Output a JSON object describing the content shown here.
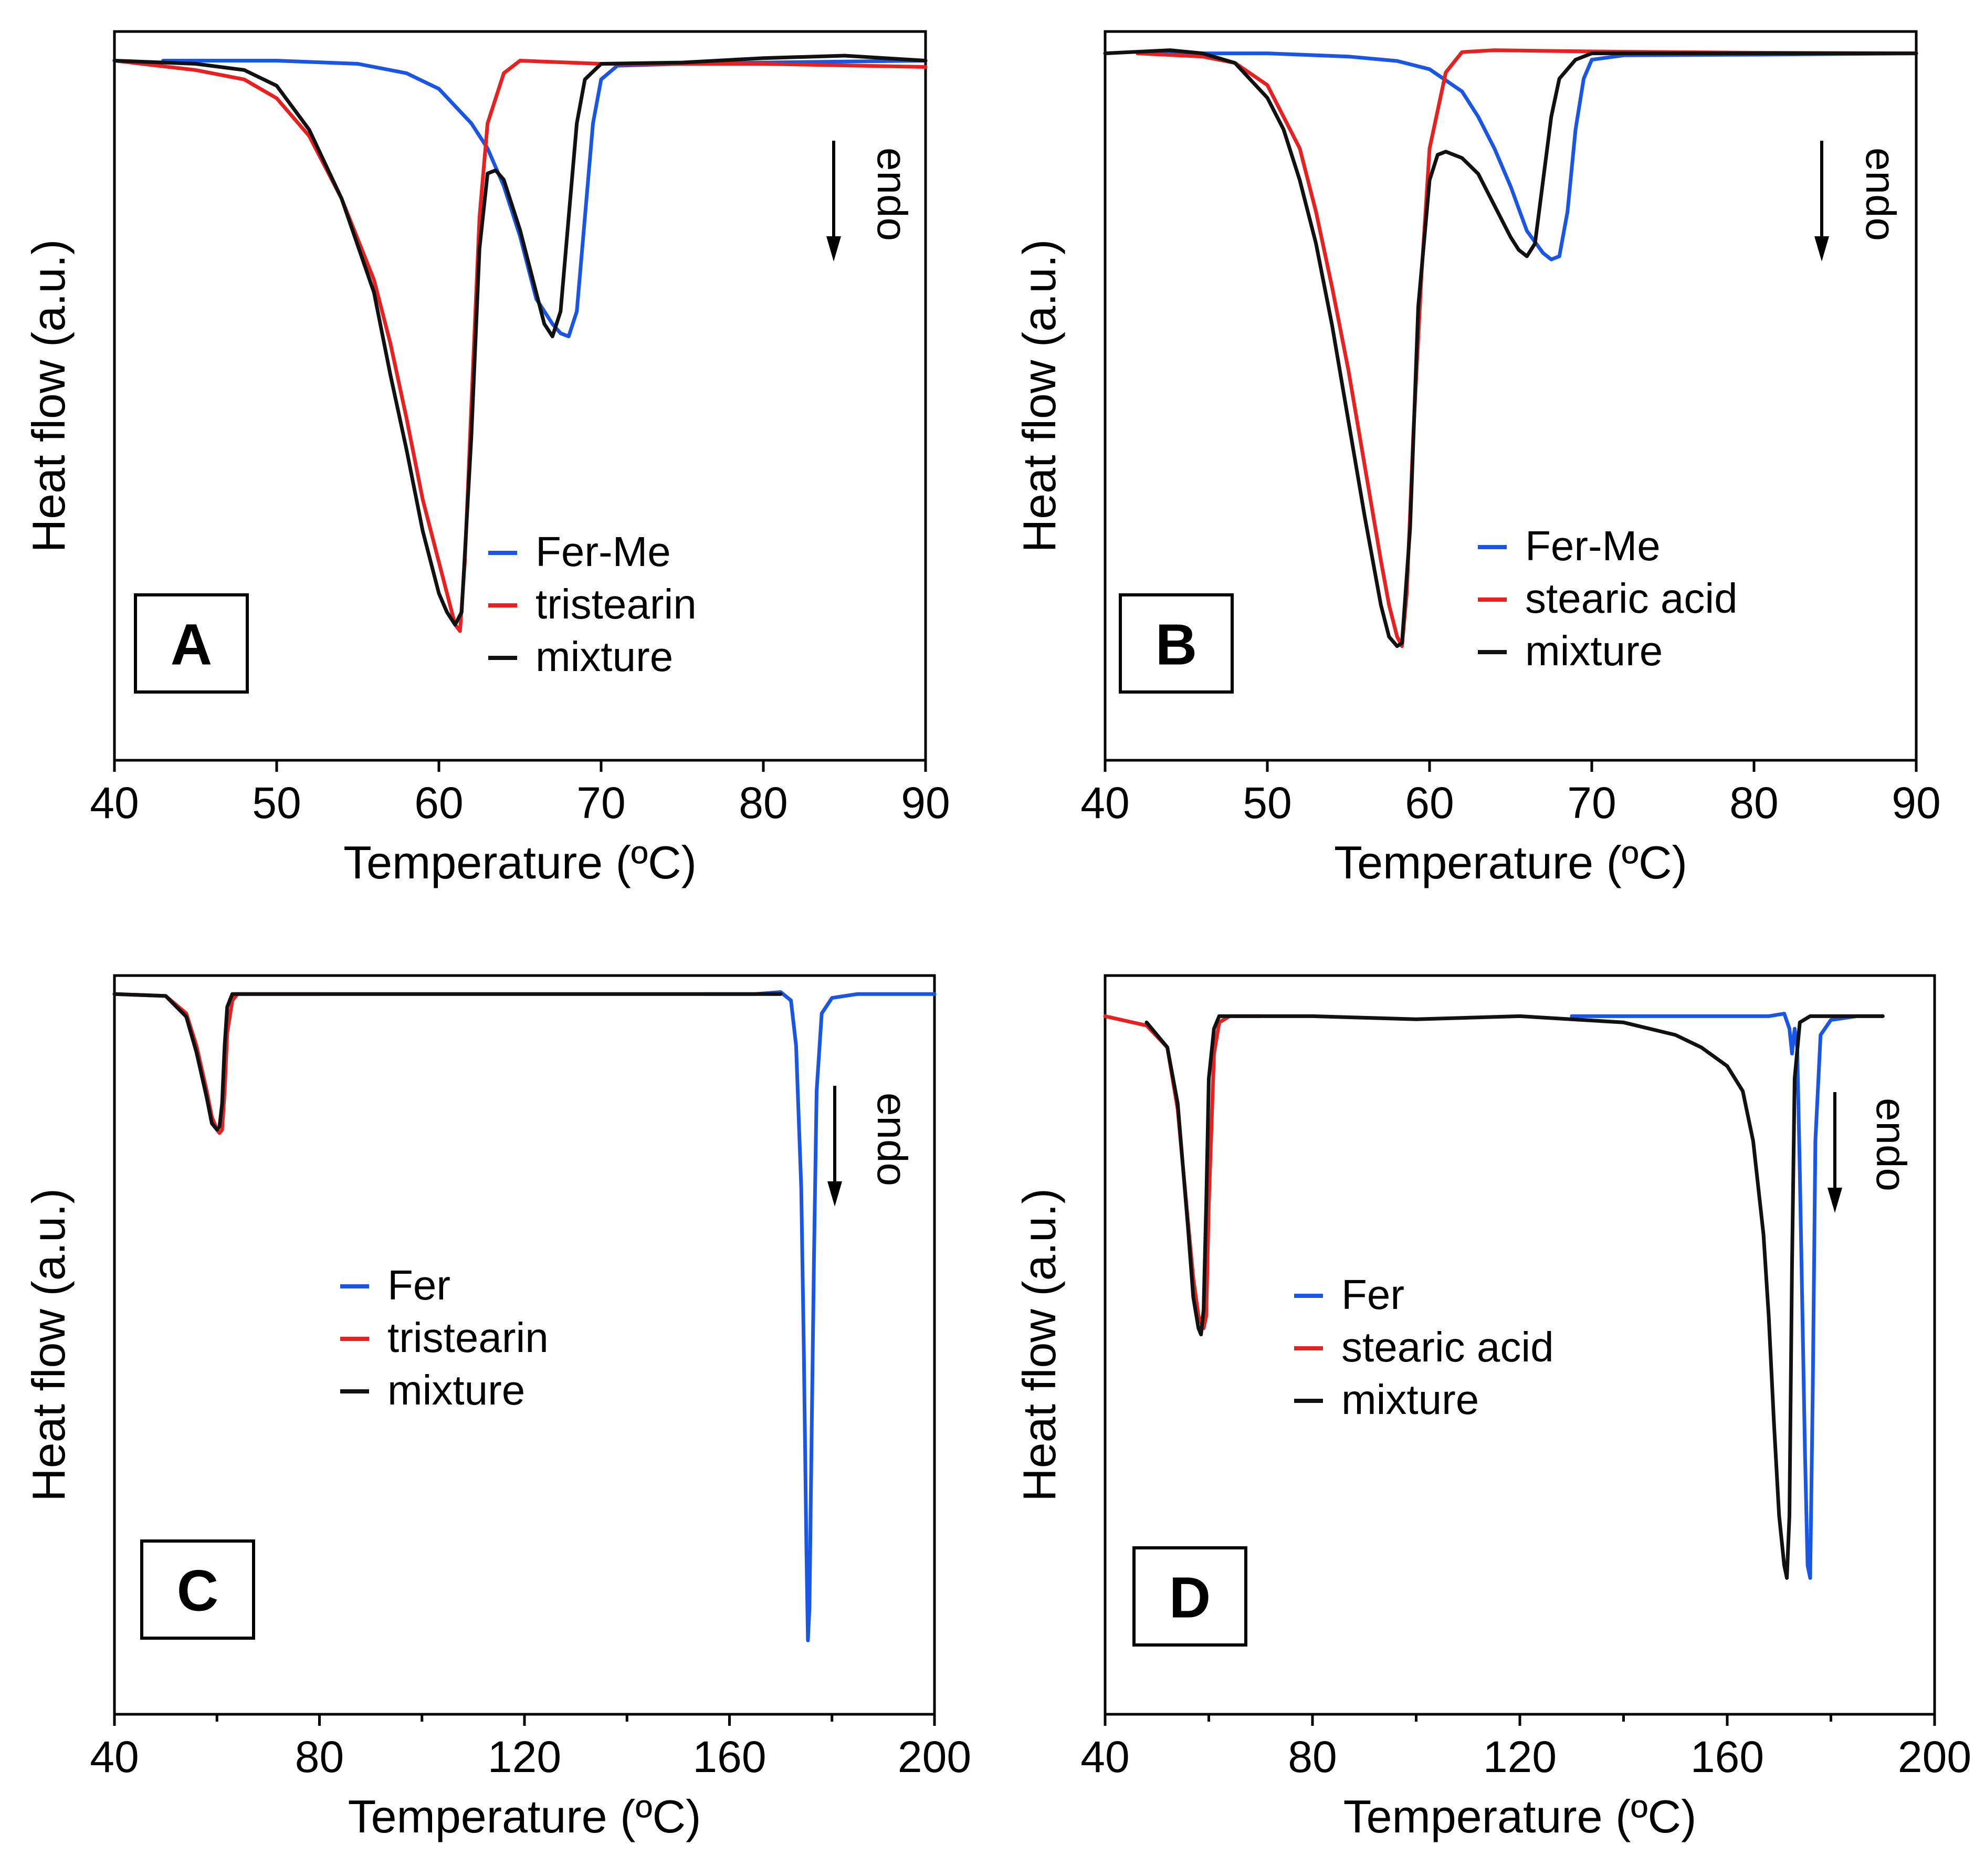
{
  "colors": {
    "blue": "#1a56e6",
    "red": "#e8201f",
    "black": "#111111"
  },
  "chart_data": [
    {
      "type": "line",
      "panel_label": "A",
      "xlabel": "Temperature (ºC)",
      "ylabel": "Heat flow (a.u.)",
      "xlim": [
        40,
        90
      ],
      "ylim": [
        0,
        1
      ],
      "xticks": [
        40,
        50,
        60,
        70,
        80,
        90
      ],
      "xminor": [],
      "annotation": "endo",
      "legend_position": "lower-right",
      "series": [
        {
          "name": "Fer-Me",
          "color": "#1a56e6",
          "x": [
            43,
            50,
            55,
            58,
            60,
            62,
            63,
            64,
            65,
            66,
            67,
            67.5,
            68,
            68.5,
            69,
            69.5,
            70,
            71,
            75,
            80,
            90
          ],
          "y": [
            0.0,
            0.0,
            0.005,
            0.02,
            0.045,
            0.1,
            0.14,
            0.2,
            0.28,
            0.38,
            0.42,
            0.435,
            0.44,
            0.4,
            0.25,
            0.1,
            0.03,
            0.008,
            0.005,
            0.003,
            0.0
          ]
        },
        {
          "name": "tristearin",
          "color": "#e8201f",
          "x": [
            40,
            45,
            48,
            50,
            52,
            54,
            56,
            57,
            58,
            59,
            60,
            60.5,
            61,
            61.3,
            61.6,
            62,
            62.5,
            63,
            64,
            65,
            70,
            80,
            90
          ],
          "y": [
            0.0,
            0.015,
            0.03,
            0.06,
            0.12,
            0.22,
            0.35,
            0.45,
            0.57,
            0.7,
            0.8,
            0.85,
            0.9,
            0.91,
            0.8,
            0.55,
            0.25,
            0.1,
            0.02,
            0.0,
            0.005,
            0.005,
            0.01
          ]
        },
        {
          "name": "mixture",
          "color": "#111111",
          "x": [
            40,
            45,
            48,
            50,
            52,
            54,
            56,
            57,
            58,
            59,
            60,
            60.5,
            61,
            61.4,
            62,
            62.5,
            63,
            63.5,
            64,
            65,
            66,
            66.5,
            67,
            67.5,
            68,
            68.5,
            69,
            70,
            75,
            80,
            85,
            90
          ],
          "y": [
            0.0,
            0.005,
            0.015,
            0.04,
            0.11,
            0.22,
            0.37,
            0.5,
            0.62,
            0.75,
            0.85,
            0.88,
            0.9,
            0.88,
            0.6,
            0.3,
            0.18,
            0.175,
            0.19,
            0.27,
            0.37,
            0.42,
            0.44,
            0.4,
            0.25,
            0.1,
            0.03,
            0.005,
            0.003,
            -0.004,
            -0.008,
            0.0
          ]
        }
      ]
    },
    {
      "type": "line",
      "panel_label": "B",
      "xlabel": "Temperature (ºC)",
      "ylabel": "Heat flow (a.u.)",
      "xlim": [
        40,
        90
      ],
      "ylim": [
        0,
        1
      ],
      "xticks": [
        40,
        50,
        60,
        70,
        80,
        90
      ],
      "xminor": [],
      "annotation": "endo",
      "legend_position": "lower-right",
      "series": [
        {
          "name": "Fer-Me",
          "color": "#1a56e6",
          "x": [
            42,
            50,
            55,
            58,
            60,
            62,
            63,
            64,
            65,
            66,
            67,
            67.5,
            68,
            68.5,
            69,
            69.5,
            70,
            72,
            80,
            90
          ],
          "y": [
            0.0,
            0.0,
            0.005,
            0.012,
            0.025,
            0.06,
            0.1,
            0.15,
            0.21,
            0.28,
            0.315,
            0.325,
            0.32,
            0.25,
            0.12,
            0.04,
            0.01,
            0.003,
            0.002,
            0.0
          ]
        },
        {
          "name": "stearic acid",
          "color": "#e8201f",
          "x": [
            42,
            46,
            48,
            50,
            52,
            53,
            54,
            55,
            56,
            57,
            57.5,
            58,
            58.3,
            58.6,
            59,
            59.5,
            60,
            61,
            62,
            64,
            70,
            80,
            90
          ],
          "y": [
            0.0,
            0.005,
            0.015,
            0.05,
            0.15,
            0.25,
            0.37,
            0.5,
            0.65,
            0.8,
            0.87,
            0.92,
            0.935,
            0.85,
            0.6,
            0.35,
            0.15,
            0.03,
            -0.002,
            -0.005,
            -0.003,
            -0.001,
            0.0
          ]
        },
        {
          "name": "mixture",
          "color": "#111111",
          "x": [
            40,
            44,
            46,
            48,
            50,
            51,
            52,
            53,
            54,
            55,
            56,
            57,
            57.5,
            58,
            58.3,
            58.8,
            59.3,
            60,
            60.5,
            61,
            62,
            63,
            64,
            65,
            65.5,
            66,
            66.5,
            67,
            67.5,
            68,
            69,
            70,
            80,
            90
          ],
          "y": [
            0.0,
            -0.005,
            0.0,
            0.015,
            0.07,
            0.12,
            0.2,
            0.3,
            0.43,
            0.58,
            0.73,
            0.87,
            0.92,
            0.935,
            0.93,
            0.75,
            0.4,
            0.2,
            0.16,
            0.155,
            0.165,
            0.19,
            0.24,
            0.29,
            0.31,
            0.32,
            0.3,
            0.2,
            0.1,
            0.04,
            0.01,
            0.0,
            0.0,
            0.0
          ]
        }
      ]
    },
    {
      "type": "line",
      "panel_label": "C",
      "xlabel": "Temperature (ºC)",
      "ylabel": "Heat flow (a.u.)",
      "xlim": [
        40,
        200
      ],
      "ylim": [
        0,
        1
      ],
      "xticks": [
        40,
        80,
        120,
        160,
        200
      ],
      "xminor": [
        60,
        100,
        140,
        180
      ],
      "annotation": "endo",
      "legend_position": "center",
      "series": [
        {
          "name": "Fer",
          "color": "#1a56e6",
          "x": [
            155,
            165,
            170,
            172,
            173,
            174,
            174.5,
            175,
            175.3,
            175.6,
            176,
            176.5,
            177,
            178,
            180,
            185,
            190,
            200
          ],
          "y": [
            0.0,
            0.0,
            -0.003,
            0.01,
            0.08,
            0.3,
            0.55,
            0.85,
            1.0,
            0.95,
            0.7,
            0.4,
            0.15,
            0.03,
            0.006,
            0.0,
            0.0,
            0.0
          ]
        },
        {
          "name": "tristearin",
          "color": "#e8201f",
          "x": [
            40,
            50,
            54,
            56,
            58,
            59,
            60,
            60.5,
            61,
            61.5,
            62,
            63,
            64,
            70,
            80
          ],
          "y": [
            0.0,
            0.003,
            0.03,
            0.08,
            0.15,
            0.19,
            0.21,
            0.215,
            0.21,
            0.15,
            0.06,
            0.01,
            0.0,
            0.0,
            0.0
          ]
        },
        {
          "name": "mixture",
          "color": "#111111",
          "x": [
            40,
            50,
            54,
            56,
            58,
            59,
            60,
            60.5,
            61,
            61.5,
            62,
            63,
            65,
            80,
            100,
            120,
            140,
            160,
            170
          ],
          "y": [
            0.0,
            0.003,
            0.035,
            0.09,
            0.16,
            0.2,
            0.21,
            0.205,
            0.17,
            0.08,
            0.02,
            0.0,
            0.0,
            0.0,
            0.0,
            0.0,
            0.0,
            0.0,
            0.0
          ]
        }
      ]
    },
    {
      "type": "line",
      "panel_label": "D",
      "xlabel": "Temperature (ºC)",
      "ylabel": "Heat flow (a.u.)",
      "xlim": [
        40,
        200
      ],
      "ylim": [
        0,
        1
      ],
      "xticks": [
        40,
        80,
        120,
        160,
        200
      ],
      "xminor": [
        60,
        100,
        140,
        180
      ],
      "annotation": "endo",
      "legend_position": "center",
      "series": [
        {
          "name": "Fer",
          "color": "#1a56e6",
          "x": [
            130,
            160,
            168,
            171,
            172,
            172.5,
            173,
            173.5,
            174,
            175,
            175.5,
            176,
            176.5,
            177,
            178,
            180,
            185,
            190
          ],
          "y": [
            0.0,
            0.0,
            0.0,
            -0.004,
            0.02,
            0.06,
            0.02,
            0.05,
            0.25,
            0.7,
            0.88,
            0.9,
            0.6,
            0.2,
            0.03,
            0.006,
            0.0,
            0.0
          ]
        },
        {
          "name": "stearic acid",
          "color": "#e8201f",
          "x": [
            40,
            48,
            52,
            54,
            56,
            57,
            58,
            59,
            59.5,
            60,
            61,
            62,
            64,
            70
          ],
          "y": [
            0.0,
            0.015,
            0.05,
            0.15,
            0.33,
            0.42,
            0.48,
            0.5,
            0.48,
            0.3,
            0.06,
            0.01,
            0.0,
            0.0
          ]
        },
        {
          "name": "mixture",
          "color": "#111111",
          "x": [
            48,
            52,
            54,
            56,
            57,
            58,
            58.5,
            59,
            59.5,
            60,
            61,
            62,
            65,
            80,
            100,
            120,
            140,
            150,
            155,
            160,
            163,
            165,
            167,
            168,
            169,
            170,
            171,
            171.5,
            172,
            172.5,
            173,
            174,
            176,
            180,
            190
          ],
          "y": [
            0.01,
            0.05,
            0.14,
            0.34,
            0.45,
            0.5,
            0.51,
            0.47,
            0.3,
            0.1,
            0.02,
            0.0,
            0.0,
            0.0,
            0.005,
            0.0,
            0.01,
            0.03,
            0.05,
            0.08,
            0.12,
            0.2,
            0.35,
            0.48,
            0.65,
            0.8,
            0.88,
            0.9,
            0.8,
            0.4,
            0.1,
            0.01,
            0.0,
            0.0,
            0.0
          ]
        }
      ]
    }
  ]
}
